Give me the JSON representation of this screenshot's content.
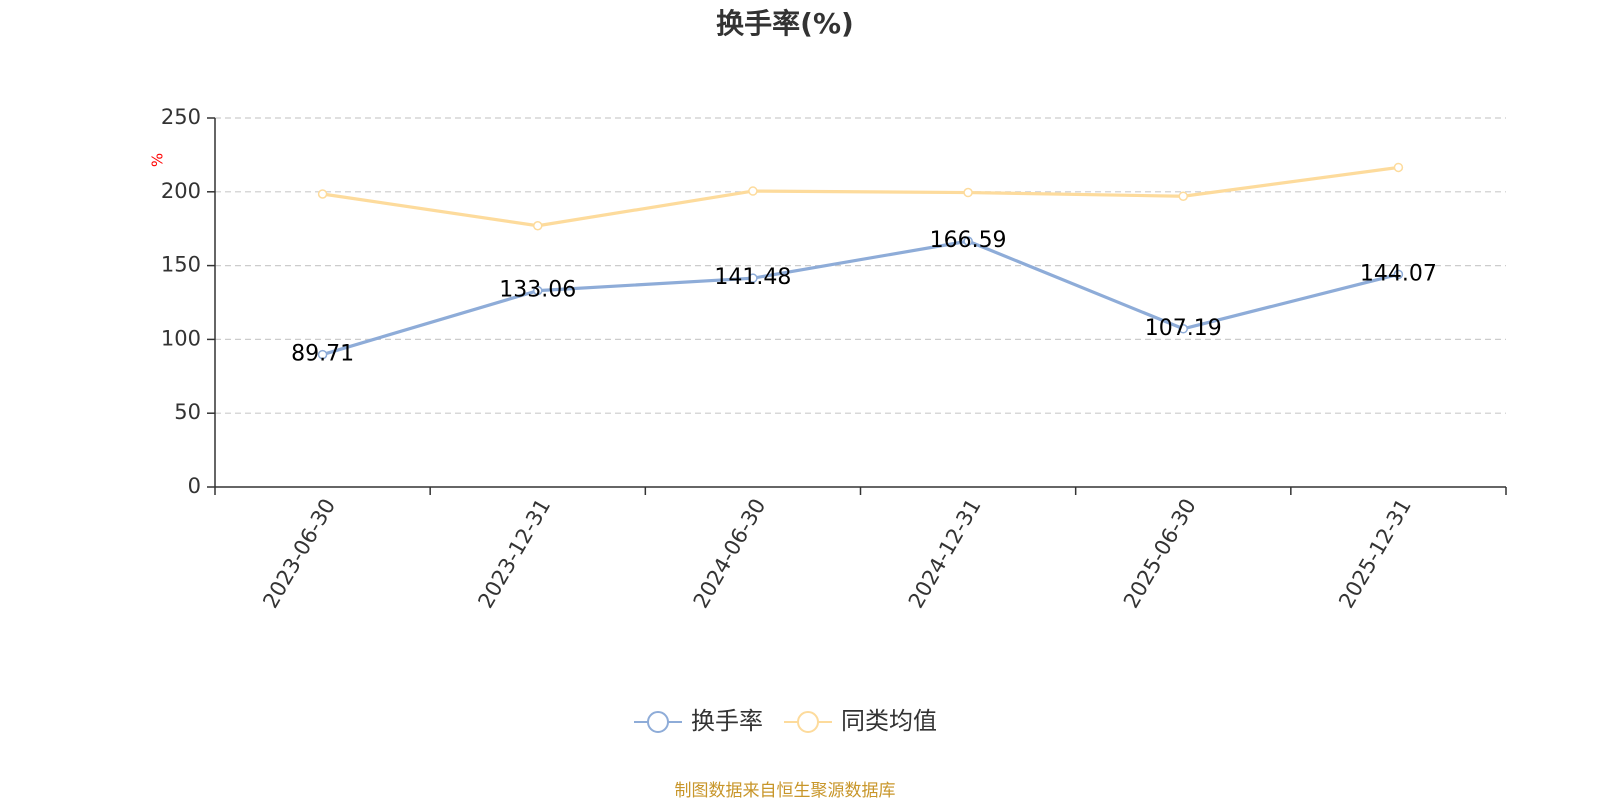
{
  "chart_data": {
    "type": "line",
    "title": "换手率(%)",
    "ylabel": "%",
    "x": [
      "2023-06-30",
      "2023-12-31",
      "2024-06-30",
      "2024-12-31",
      "2025-06-30",
      "2025-12-31"
    ],
    "ylim": [
      0,
      250
    ],
    "yticks": [
      0,
      50,
      100,
      150,
      200,
      250
    ],
    "grid": true,
    "legend": "bottom-center",
    "series": [
      {
        "name": "换手率",
        "values": [
          89.71,
          133.06,
          141.48,
          166.59,
          107.19,
          144.07
        ],
        "color": "#8eacd8",
        "labels_shown": true
      },
      {
        "name": "同类均值",
        "values": [
          198.5,
          177,
          200.5,
          199.5,
          197,
          216.5
        ],
        "color": "#fddb9c",
        "labels_shown": false
      }
    ]
  },
  "colors": {
    "axis": "#333333",
    "grid": "#cccccc",
    "unit": "#ff0000",
    "source": "#c8962a"
  },
  "source_note": "制图数据来自恒生聚源数据库"
}
